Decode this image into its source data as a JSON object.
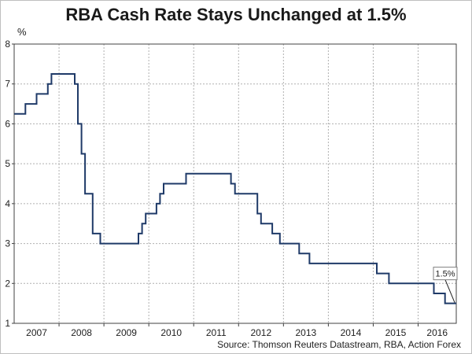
{
  "chart_data": {
    "type": "line",
    "title": "RBA Cash Rate Stays Unchanged at 1.5%",
    "ylabel": "%",
    "xlabel": "",
    "ylim": [
      1,
      8
    ],
    "yticks": [
      "1",
      "2",
      "3",
      "4",
      "5",
      "6",
      "7",
      "8"
    ],
    "xlim": [
      2007.0,
      2016.85
    ],
    "xticks": [
      "2007",
      "2008",
      "2009",
      "2010",
      "2011",
      "2012",
      "2013",
      "2014",
      "2015",
      "2016"
    ],
    "grid": true,
    "line_color": "#1f3a68",
    "annotation": {
      "label": "1.5%",
      "x": 2016.85,
      "y": 1.5
    },
    "source": "Source: Thomson Reuters Datastream, RBA, Action Forex",
    "series": [
      {
        "name": "RBA Cash Rate",
        "step": true,
        "points": [
          [
            2007.0,
            6.25
          ],
          [
            2007.25,
            6.5
          ],
          [
            2007.5,
            6.75
          ],
          [
            2007.75,
            7.0
          ],
          [
            2007.83,
            7.25
          ],
          [
            2008.25,
            7.25
          ],
          [
            2008.35,
            7.0
          ],
          [
            2008.42,
            6.0
          ],
          [
            2008.5,
            5.25
          ],
          [
            2008.58,
            4.25
          ],
          [
            2008.75,
            3.25
          ],
          [
            2008.92,
            3.0
          ],
          [
            2009.42,
            3.0
          ],
          [
            2009.77,
            3.25
          ],
          [
            2009.85,
            3.5
          ],
          [
            2009.93,
            3.75
          ],
          [
            2010.17,
            4.0
          ],
          [
            2010.25,
            4.25
          ],
          [
            2010.33,
            4.5
          ],
          [
            2010.83,
            4.75
          ],
          [
            2011.83,
            4.5
          ],
          [
            2011.92,
            4.25
          ],
          [
            2012.42,
            3.75
          ],
          [
            2012.5,
            3.5
          ],
          [
            2012.75,
            3.25
          ],
          [
            2012.92,
            3.0
          ],
          [
            2013.35,
            2.75
          ],
          [
            2013.58,
            2.5
          ],
          [
            2015.08,
            2.25
          ],
          [
            2015.35,
            2.0
          ],
          [
            2016.35,
            1.75
          ],
          [
            2016.6,
            1.5
          ],
          [
            2016.85,
            1.5
          ]
        ]
      }
    ]
  }
}
